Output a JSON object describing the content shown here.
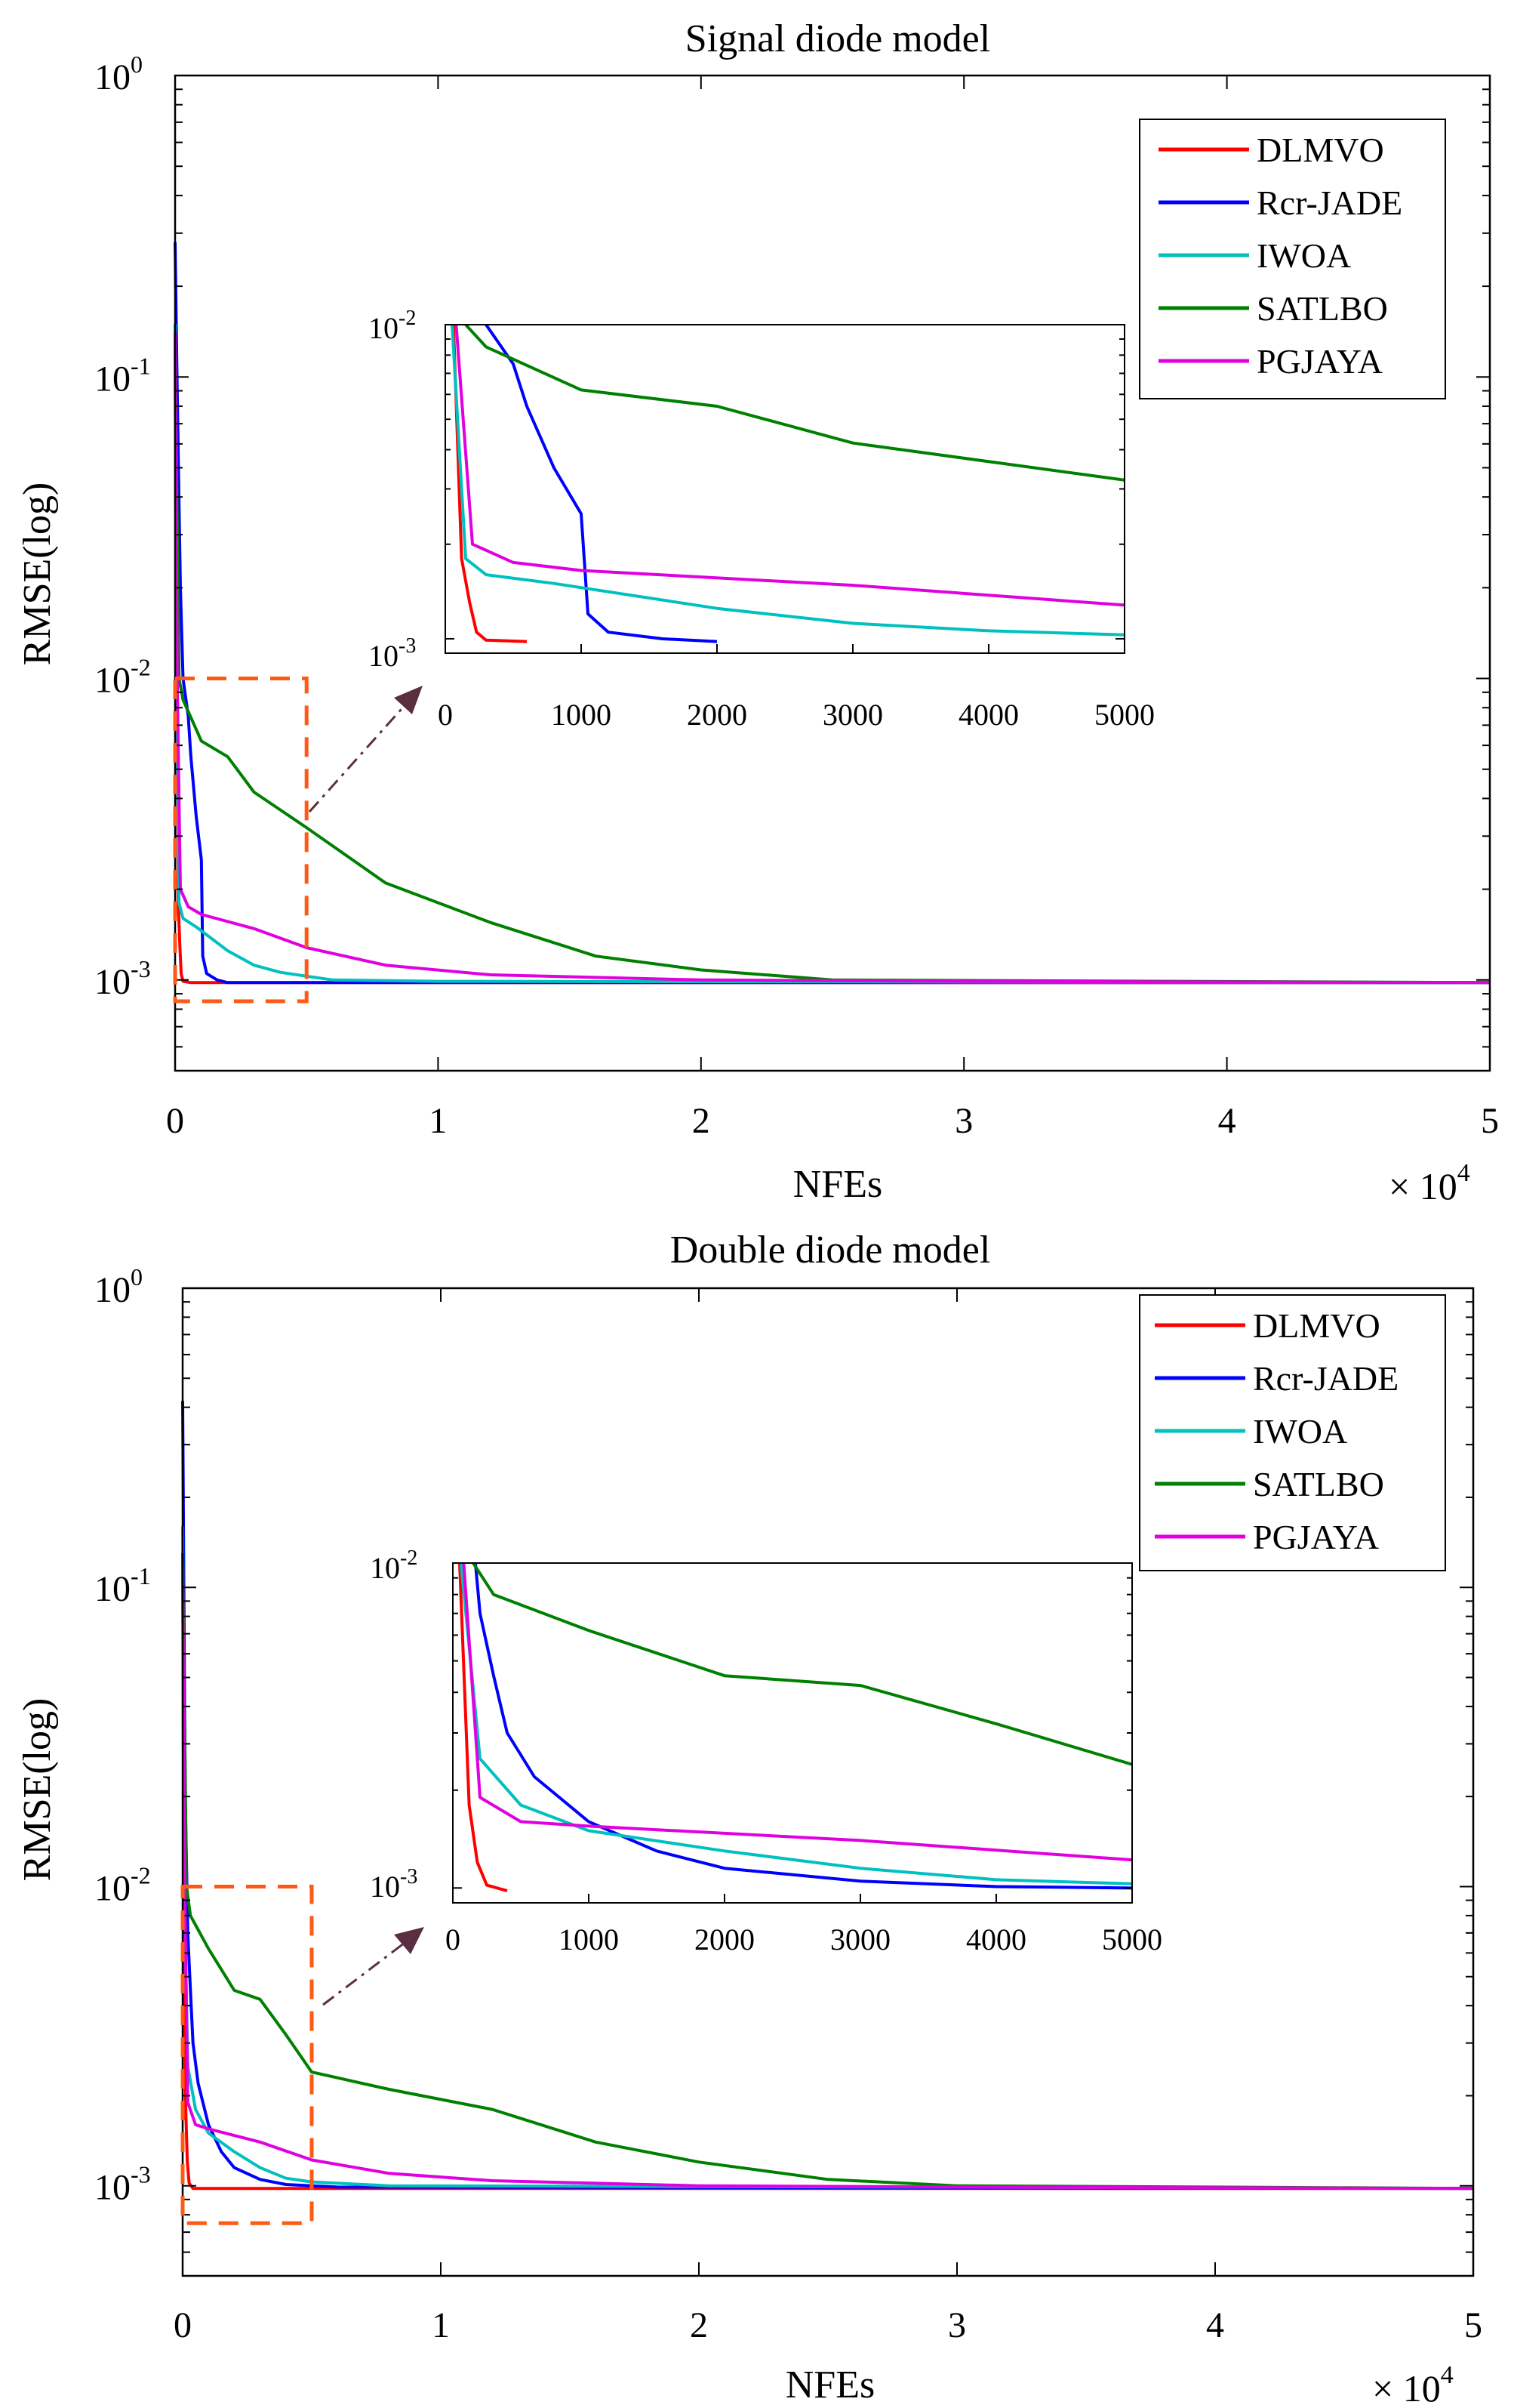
{
  "chart_data": [
    {
      "type": "line",
      "title": "Signal diode model",
      "xlabel": "NFEs",
      "ylabel": "RMSE(log)",
      "x_multiplier": "× 10",
      "x_multiplier_exp": "4",
      "xlim": [
        0,
        50000
      ],
      "ylim": [
        0.0005,
        1
      ],
      "yscale": "log",
      "x_ticks": [
        0,
        10000,
        20000,
        30000,
        40000,
        50000
      ],
      "x_tick_labels": [
        "0",
        "1",
        "2",
        "3",
        "4",
        "5"
      ],
      "y_ticks": [
        0.001,
        0.01,
        0.1,
        1
      ],
      "y_tick_labels": [
        {
          "base": "10",
          "exp": "-3"
        },
        {
          "base": "10",
          "exp": "-2"
        },
        {
          "base": "10",
          "exp": "-1"
        },
        {
          "base": "10",
          "exp": "0"
        }
      ],
      "legend_position": "top-right",
      "series": [
        {
          "name": "DLMVO",
          "color": "#ff0000",
          "points": [
            [
              0,
              0.12
            ],
            [
              60,
              0.01
            ],
            [
              120,
              0.0018
            ],
            [
              180,
              0.0013
            ],
            [
              230,
              0.00105
            ],
            [
              300,
              0.00099
            ],
            [
              600,
              0.00098
            ],
            [
              50000,
              0.00098
            ]
          ]
        },
        {
          "name": "Rcr-JADE",
          "color": "#0000ff",
          "points": [
            [
              0,
              0.28
            ],
            [
              80,
              0.09
            ],
            [
              200,
              0.02
            ],
            [
              300,
              0.01
            ],
            [
              500,
              0.0075
            ],
            [
              600,
              0.0055
            ],
            [
              800,
              0.0035
            ],
            [
              1000,
              0.0025
            ],
            [
              1050,
              0.0012
            ],
            [
              1200,
              0.00105
            ],
            [
              1600,
              0.001
            ],
            [
              2000,
              0.00098
            ],
            [
              50000,
              0.00098
            ]
          ]
        },
        {
          "name": "IWOA",
          "color": "#00c0c0",
          "points": [
            [
              0,
              0.15
            ],
            [
              50,
              0.01
            ],
            [
              150,
              0.0018
            ],
            [
              300,
              0.0016
            ],
            [
              800,
              0.0015
            ],
            [
              2000,
              0.00125
            ],
            [
              3000,
              0.00112
            ],
            [
              4000,
              0.00106
            ],
            [
              6000,
              0.001
            ],
            [
              10000,
              0.00099
            ],
            [
              50000,
              0.00098
            ]
          ]
        },
        {
          "name": "SATLBO",
          "color": "#008000",
          "points": [
            [
              0,
              0.14
            ],
            [
              150,
              0.01
            ],
            [
              300,
              0.0085
            ],
            [
              1000,
              0.0062
            ],
            [
              2000,
              0.0055
            ],
            [
              3000,
              0.0042
            ],
            [
              5000,
              0.0032
            ],
            [
              8000,
              0.0021
            ],
            [
              12000,
              0.00155
            ],
            [
              16000,
              0.0012
            ],
            [
              20000,
              0.00108
            ],
            [
              25000,
              0.001
            ],
            [
              50000,
              0.00098
            ]
          ]
        },
        {
          "name": "PGJAYA",
          "color": "#e000e0",
          "points": [
            [
              0,
              0.14
            ],
            [
              80,
              0.01
            ],
            [
              200,
              0.002
            ],
            [
              500,
              0.00175
            ],
            [
              1000,
              0.00165
            ],
            [
              3000,
              0.00148
            ],
            [
              5000,
              0.00128
            ],
            [
              8000,
              0.00112
            ],
            [
              12000,
              0.00104
            ],
            [
              20000,
              0.001
            ],
            [
              30000,
              0.00099
            ],
            [
              50000,
              0.00098
            ]
          ]
        }
      ],
      "inset": {
        "xlim": [
          0,
          5000
        ],
        "ylim": [
          0.0009,
          0.01
        ],
        "x_ticks": [
          0,
          1000,
          2000,
          3000,
          4000,
          5000
        ],
        "x_tick_labels": [
          "0",
          "1000",
          "2000",
          "3000",
          "4000",
          "5000"
        ],
        "y_tick_labels": [
          {
            "base": "10",
            "exp": "-3"
          },
          {
            "base": "10",
            "exp": "-2"
          }
        ],
        "zoom_box": {
          "x": [
            0,
            5000
          ],
          "y": [
            0.00085,
            0.01
          ]
        }
      }
    },
    {
      "type": "line",
      "title": "Double diode model",
      "xlabel": "NFEs",
      "ylabel": "RMSE(log)",
      "x_multiplier": "× 10",
      "x_multiplier_exp": "4",
      "xlim": [
        0,
        50000
      ],
      "ylim": [
        0.0005,
        1
      ],
      "yscale": "log",
      "x_ticks": [
        0,
        10000,
        20000,
        30000,
        40000,
        50000
      ],
      "x_tick_labels": [
        "0",
        "1",
        "2",
        "3",
        "4",
        "5"
      ],
      "y_ticks": [
        0.001,
        0.01,
        0.1,
        1
      ],
      "y_tick_labels": [
        {
          "base": "10",
          "exp": "-3"
        },
        {
          "base": "10",
          "exp": "-2"
        },
        {
          "base": "10",
          "exp": "-1"
        },
        {
          "base": "10",
          "exp": "0"
        }
      ],
      "legend_position": "top-right",
      "series": [
        {
          "name": "DLMVO",
          "color": "#ff0000",
          "points": [
            [
              0,
              0.12
            ],
            [
              50,
              0.01
            ],
            [
              120,
              0.0018
            ],
            [
              180,
              0.0012
            ],
            [
              250,
              0.00102
            ],
            [
              400,
              0.00098
            ],
            [
              50000,
              0.00098
            ]
          ]
        },
        {
          "name": "Rcr-JADE",
          "color": "#0000ff",
          "points": [
            [
              0,
              0.42
            ],
            [
              100,
              0.02
            ],
            [
              200,
              0.007
            ],
            [
              300,
              0.0045
            ],
            [
              400,
              0.003
            ],
            [
              600,
              0.0022
            ],
            [
              1000,
              0.0016
            ],
            [
              1500,
              0.0013
            ],
            [
              2000,
              0.00115
            ],
            [
              3000,
              0.00105
            ],
            [
              4000,
              0.00101
            ],
            [
              6000,
              0.00099
            ],
            [
              50000,
              0.00098
            ]
          ]
        },
        {
          "name": "IWOA",
          "color": "#00c0c0",
          "points": [
            [
              0,
              0.16
            ],
            [
              60,
              0.01
            ],
            [
              200,
              0.0025
            ],
            [
              500,
              0.0018
            ],
            [
              1000,
              0.0015
            ],
            [
              2000,
              0.0013
            ],
            [
              3000,
              0.00115
            ],
            [
              4000,
              0.00106
            ],
            [
              5000,
              0.00103
            ],
            [
              8000,
              0.001
            ],
            [
              50000,
              0.00098
            ]
          ]
        },
        {
          "name": "SATLBO",
          "color": "#008000",
          "points": [
            [
              0,
              0.13
            ],
            [
              150,
              0.01
            ],
            [
              300,
              0.008
            ],
            [
              1000,
              0.0062
            ],
            [
              2000,
              0.0045
            ],
            [
              3000,
              0.0042
            ],
            [
              4000,
              0.0032
            ],
            [
              5000,
              0.0024
            ],
            [
              8000,
              0.0021
            ],
            [
              12000,
              0.0018
            ],
            [
              16000,
              0.0014
            ],
            [
              20000,
              0.0012
            ],
            [
              25000,
              0.00105
            ],
            [
              30000,
              0.001
            ],
            [
              50000,
              0.00098
            ]
          ]
        },
        {
          "name": "PGJAYA",
          "color": "#e000e0",
          "points": [
            [
              0,
              0.12
            ],
            [
              80,
              0.01
            ],
            [
              200,
              0.0019
            ],
            [
              500,
              0.0016
            ],
            [
              1000,
              0.00155
            ],
            [
              3000,
              0.0014
            ],
            [
              5000,
              0.00122
            ],
            [
              8000,
              0.0011
            ],
            [
              12000,
              0.00104
            ],
            [
              20000,
              0.001
            ],
            [
              30000,
              0.00099
            ],
            [
              50000,
              0.00098
            ]
          ]
        }
      ],
      "inset": {
        "xlim": [
          0,
          5000
        ],
        "ylim": [
          0.0009,
          0.01
        ],
        "x_ticks": [
          0,
          1000,
          2000,
          3000,
          4000,
          5000
        ],
        "x_tick_labels": [
          "0",
          "1000",
          "2000",
          "3000",
          "4000",
          "5000"
        ],
        "y_tick_labels": [
          {
            "base": "10",
            "exp": "-3"
          },
          {
            "base": "10",
            "exp": "-2"
          }
        ],
        "zoom_box": {
          "x": [
            0,
            5000
          ],
          "y": [
            0.00075,
            0.01
          ]
        }
      }
    }
  ],
  "colors": {
    "zoom_box": "#ff5a14",
    "arrow": "#5a3040",
    "axis": "#000000"
  }
}
